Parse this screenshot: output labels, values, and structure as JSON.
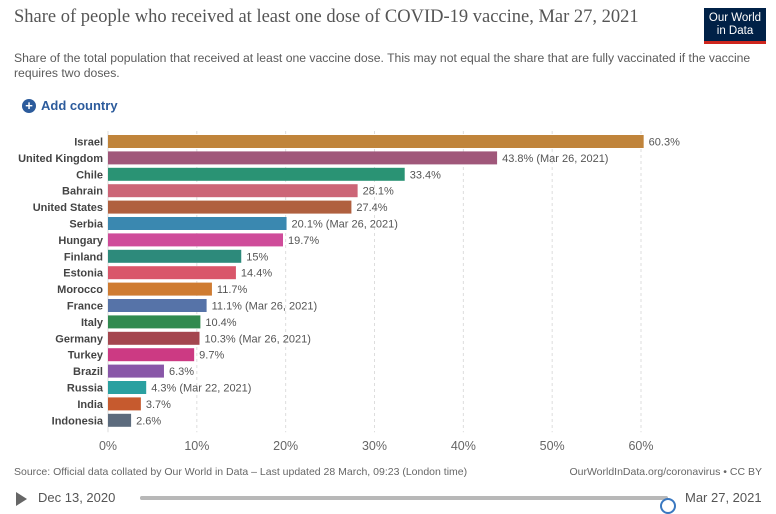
{
  "header": {
    "title": "Share of people who received at least one dose of COVID-19 vaccine, Mar 27, 2021",
    "subtitle": "Share of the total population that received at least one vaccine dose. This may not equal the share that are fully vaccinated if the vaccine requires two doses.",
    "logo_line1": "Our World",
    "logo_line2": "in Data",
    "add_country_label": "Add country",
    "add_country_icon": "plus-circle-icon"
  },
  "chart_data": {
    "type": "bar",
    "orientation": "horizontal",
    "categories": [
      "Israel",
      "United Kingdom",
      "Chile",
      "Bahrain",
      "United States",
      "Serbia",
      "Hungary",
      "Finland",
      "Estonia",
      "Morocco",
      "France",
      "Italy",
      "Germany",
      "Turkey",
      "Brazil",
      "Russia",
      "India",
      "Indonesia"
    ],
    "values": [
      60.3,
      43.8,
      33.4,
      28.1,
      27.4,
      20.1,
      19.7,
      15,
      14.4,
      11.7,
      11.1,
      10.4,
      10.3,
      9.7,
      6.3,
      4.3,
      3.7,
      2.6
    ],
    "value_labels": [
      "60.3%",
      "43.8% (Mar 26, 2021)",
      "33.4%",
      "28.1%",
      "27.4%",
      "20.1% (Mar 26, 2021)",
      "19.7%",
      "15%",
      "14.4%",
      "11.7%",
      "11.1% (Mar 26, 2021)",
      "10.4%",
      "10.3% (Mar 26, 2021)",
      "9.7%",
      "6.3%",
      "4.3% (Mar 22, 2021)",
      "3.7%",
      "2.6%"
    ],
    "colors": [
      "#c0843b",
      "#a0577a",
      "#2a9374",
      "#cc6577",
      "#b0603f",
      "#3a88b0",
      "#cf4c9a",
      "#2d8a7b",
      "#d9566a",
      "#cf7c32",
      "#5673a8",
      "#318a4f",
      "#a4464f",
      "#cc3a83",
      "#8957a8",
      "#2aa0a0",
      "#c65a2e",
      "#5c6b7d"
    ],
    "xticks": [
      "0%",
      "10%",
      "20%",
      "30%",
      "40%",
      "50%",
      "60%"
    ],
    "xlim": [
      0,
      60
    ],
    "grid": true,
    "title": "Share of people who received at least one dose of COVID-19 vaccine, Mar 27, 2021",
    "xlabel": "",
    "ylabel": ""
  },
  "footer": {
    "source": "Source: Official data collated by Our World in Data – Last updated 28 March, 09:23 (London time)",
    "license": "OurWorldInData.org/coronavirus • CC BY"
  },
  "timeline": {
    "play_icon": "play-icon",
    "start_date": "Dec 13, 2020",
    "end_date": "Mar 27, 2021",
    "position": 1.0
  }
}
